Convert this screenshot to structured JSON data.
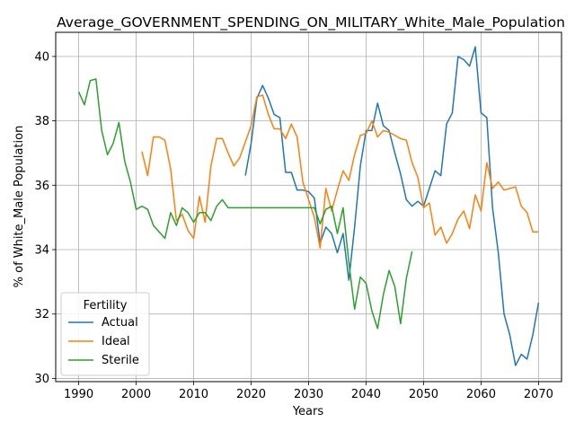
{
  "chart_data": {
    "type": "line",
    "title": "Average_GOVERNMENT_SPENDING_ON_MILITARY_White_Male_Population",
    "xlabel": "Years",
    "ylabel": "% of White_Male Population",
    "xlim": [
      1986,
      2074
    ],
    "ylim": [
      29.9,
      40.75
    ],
    "xticks": [
      1990,
      2000,
      2010,
      2020,
      2030,
      2040,
      2050,
      2060,
      2070
    ],
    "yticks": [
      30,
      32,
      34,
      36,
      38,
      40
    ],
    "grid": true,
    "legend": {
      "title": "Fertility",
      "position": "lower-left"
    },
    "series": [
      {
        "name": "Actual",
        "color": "#1f77b4",
        "points": [
          [
            2019,
            36.3
          ],
          [
            2020,
            37.3
          ],
          [
            2021,
            38.7
          ],
          [
            2022,
            39.1
          ],
          [
            2023,
            38.7
          ],
          [
            2024,
            38.2
          ],
          [
            2025,
            38.1
          ],
          [
            2026,
            36.4
          ],
          [
            2027,
            36.4
          ],
          [
            2028,
            35.85
          ],
          [
            2029,
            35.85
          ],
          [
            2030,
            35.8
          ],
          [
            2031,
            35.6
          ],
          [
            2032,
            34.2
          ],
          [
            2033,
            34.7
          ],
          [
            2034,
            34.5
          ],
          [
            2035,
            33.9
          ],
          [
            2036,
            34.5
          ],
          [
            2037,
            33.05
          ],
          [
            2038,
            34.7
          ],
          [
            2039,
            36.6
          ],
          [
            2040,
            37.7
          ],
          [
            2041,
            37.7
          ],
          [
            2042,
            38.55
          ],
          [
            2043,
            37.85
          ],
          [
            2044,
            37.7
          ],
          [
            2045,
            37.0
          ],
          [
            2046,
            36.35
          ],
          [
            2047,
            35.55
          ],
          [
            2048,
            35.35
          ],
          [
            2049,
            35.5
          ],
          [
            2050,
            35.35
          ],
          [
            2051,
            35.9
          ],
          [
            2052,
            36.45
          ],
          [
            2053,
            36.3
          ],
          [
            2054,
            37.9
          ],
          [
            2055,
            38.25
          ],
          [
            2056,
            40.0
          ],
          [
            2057,
            39.9
          ],
          [
            2058,
            39.7
          ],
          [
            2059,
            40.3
          ],
          [
            2060,
            38.25
          ],
          [
            2061,
            38.1
          ],
          [
            2062,
            35.3
          ],
          [
            2063,
            33.9
          ],
          [
            2064,
            32.0
          ],
          [
            2065,
            31.35
          ],
          [
            2066,
            30.4
          ],
          [
            2067,
            30.75
          ],
          [
            2068,
            30.6
          ],
          [
            2069,
            31.35
          ],
          [
            2070,
            32.35
          ]
        ]
      },
      {
        "name": "Ideal",
        "color": "#ff7f0e",
        "points": [
          [
            2001,
            37.05
          ],
          [
            2002,
            36.3
          ],
          [
            2003,
            37.5
          ],
          [
            2004,
            37.5
          ],
          [
            2005,
            37.4
          ],
          [
            2006,
            36.5
          ],
          [
            2007,
            34.9
          ],
          [
            2008,
            35.1
          ],
          [
            2009,
            34.6
          ],
          [
            2010,
            34.35
          ],
          [
            2011,
            35.65
          ],
          [
            2012,
            34.85
          ],
          [
            2013,
            36.6
          ],
          [
            2014,
            37.45
          ],
          [
            2015,
            37.45
          ],
          [
            2016,
            37.0
          ],
          [
            2017,
            36.6
          ],
          [
            2018,
            36.85
          ],
          [
            2019,
            37.35
          ],
          [
            2020,
            37.85
          ],
          [
            2021,
            38.75
          ],
          [
            2022,
            38.8
          ],
          [
            2023,
            38.2
          ],
          [
            2024,
            37.75
          ],
          [
            2025,
            37.75
          ],
          [
            2026,
            37.45
          ],
          [
            2027,
            37.9
          ],
          [
            2028,
            37.5
          ],
          [
            2029,
            36.1
          ],
          [
            2030,
            35.55
          ],
          [
            2031,
            35.0
          ],
          [
            2032,
            34.05
          ],
          [
            2033,
            35.9
          ],
          [
            2034,
            35.2
          ],
          [
            2035,
            35.85
          ],
          [
            2036,
            36.45
          ],
          [
            2037,
            36.15
          ],
          [
            2038,
            36.95
          ],
          [
            2039,
            37.55
          ],
          [
            2040,
            37.6
          ],
          [
            2041,
            38.0
          ],
          [
            2042,
            37.5
          ],
          [
            2043,
            37.7
          ],
          [
            2044,
            37.65
          ],
          [
            2045,
            37.55
          ],
          [
            2046,
            37.45
          ],
          [
            2047,
            37.4
          ],
          [
            2048,
            36.7
          ],
          [
            2049,
            36.25
          ],
          [
            2050,
            35.3
          ],
          [
            2051,
            35.45
          ],
          [
            2052,
            34.45
          ],
          [
            2053,
            34.7
          ],
          [
            2054,
            34.2
          ],
          [
            2055,
            34.5
          ],
          [
            2056,
            34.95
          ],
          [
            2057,
            35.2
          ],
          [
            2058,
            34.65
          ],
          [
            2059,
            35.7
          ],
          [
            2060,
            35.2
          ],
          [
            2061,
            36.7
          ],
          [
            2062,
            35.9
          ],
          [
            2063,
            36.1
          ],
          [
            2064,
            35.85
          ],
          [
            2065,
            35.9
          ],
          [
            2066,
            35.95
          ],
          [
            2067,
            35.35
          ],
          [
            2068,
            35.15
          ],
          [
            2069,
            34.55
          ],
          [
            2070,
            34.55
          ]
        ]
      },
      {
        "name": "Sterile",
        "color": "#2ca02c",
        "points": [
          [
            1990,
            38.9
          ],
          [
            1991,
            38.5
          ],
          [
            1992,
            39.25
          ],
          [
            1993,
            39.3
          ],
          [
            1994,
            37.7
          ],
          [
            1995,
            36.95
          ],
          [
            1996,
            37.3
          ],
          [
            1997,
            37.95
          ],
          [
            1998,
            36.75
          ],
          [
            1999,
            36.1
          ],
          [
            2000,
            35.25
          ],
          [
            2001,
            35.35
          ],
          [
            2002,
            35.25
          ],
          [
            2003,
            34.75
          ],
          [
            2004,
            34.55
          ],
          [
            2005,
            34.35
          ],
          [
            2006,
            35.15
          ],
          [
            2007,
            34.75
          ],
          [
            2008,
            35.3
          ],
          [
            2009,
            35.15
          ],
          [
            2010,
            34.85
          ],
          [
            2011,
            35.15
          ],
          [
            2012,
            35.15
          ],
          [
            2013,
            34.9
          ],
          [
            2014,
            35.35
          ],
          [
            2015,
            35.55
          ],
          [
            2016,
            35.3
          ],
          [
            2017,
            35.3
          ],
          [
            2018,
            35.3
          ],
          [
            2019,
            35.3
          ],
          [
            2020,
            35.3
          ],
          [
            2021,
            35.3
          ],
          [
            2022,
            35.3
          ],
          [
            2023,
            35.3
          ],
          [
            2024,
            35.3
          ],
          [
            2025,
            35.3
          ],
          [
            2026,
            35.3
          ],
          [
            2027,
            35.3
          ],
          [
            2028,
            35.3
          ],
          [
            2029,
            35.3
          ],
          [
            2030,
            35.3
          ],
          [
            2031,
            35.3
          ],
          [
            2032,
            34.8
          ],
          [
            2033,
            35.25
          ],
          [
            2034,
            35.35
          ],
          [
            2035,
            34.5
          ],
          [
            2036,
            35.3
          ],
          [
            2037,
            33.6
          ],
          [
            2038,
            32.15
          ],
          [
            2039,
            33.15
          ],
          [
            2040,
            32.95
          ],
          [
            2041,
            32.1
          ],
          [
            2042,
            31.55
          ],
          [
            2043,
            32.6
          ],
          [
            2044,
            33.35
          ],
          [
            2045,
            32.85
          ],
          [
            2046,
            31.7
          ],
          [
            2047,
            33.1
          ],
          [
            2048,
            33.95
          ]
        ]
      }
    ]
  }
}
